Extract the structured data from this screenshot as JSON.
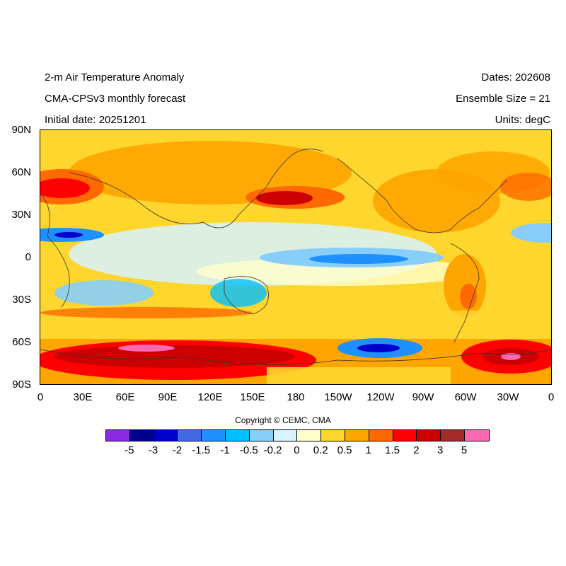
{
  "header": {
    "title": "2-m Air Temperature Anomaly",
    "model": "CMA-CPSv3 monthly forecast",
    "initial_date": "Initial date: 20251201",
    "dates": "Dates: 202608",
    "ensemble": "Ensemble Size = 21",
    "units": "Units: degC"
  },
  "map": {
    "projection": "cylindrical-equidistant",
    "lat_range": [
      -90,
      90
    ],
    "lon_range": [
      0,
      360
    ],
    "lat_ticks": [
      "90N",
      "60N",
      "30N",
      "0",
      "30S",
      "60S",
      "90S"
    ],
    "lon_ticks": [
      "0",
      "30E",
      "60E",
      "90E",
      "120E",
      "150E",
      "180",
      "150W",
      "120W",
      "90W",
      "60W",
      "30W",
      "0"
    ],
    "variable": "2-m Air Temperature Anomaly",
    "anomaly_regions": [
      {
        "region": "Southern Ocean 60S-90S",
        "approx_value": 3
      },
      {
        "region": "Equatorial Pacific 150E-90W",
        "approx_value": -0.5
      },
      {
        "region": "North Pacific 40N 150E-160W",
        "approx_value": 2
      },
      {
        "region": "Europe 50N",
        "approx_value": 2
      },
      {
        "region": "Arabian Sea / Indian Ocean 15N",
        "approx_value": -1
      },
      {
        "region": "Amundsen Sea 65S 120W",
        "approx_value": -2
      },
      {
        "region": "Weddell Sea 70S 30W",
        "approx_value": 5
      }
    ]
  },
  "copyright": "Copyright © CEMC, CMA",
  "colorbar": {
    "colors": [
      "#8a2be2",
      "#00008b",
      "#0000cd",
      "#4169e1",
      "#1e90ff",
      "#00bfff",
      "#87cefa",
      "#d6f3ff",
      "#ffffcc",
      "#ffd62e",
      "#ffa500",
      "#ff6a00",
      "#ff0000",
      "#cd0000",
      "#a52a2a",
      "#ff69b4"
    ],
    "labels": [
      "-5",
      "-3",
      "-2",
      "-1.5",
      "-1",
      "-0.5",
      "-0.2",
      "0",
      "0.2",
      "0.5",
      "1",
      "1.5",
      "2",
      "3",
      "5"
    ]
  }
}
